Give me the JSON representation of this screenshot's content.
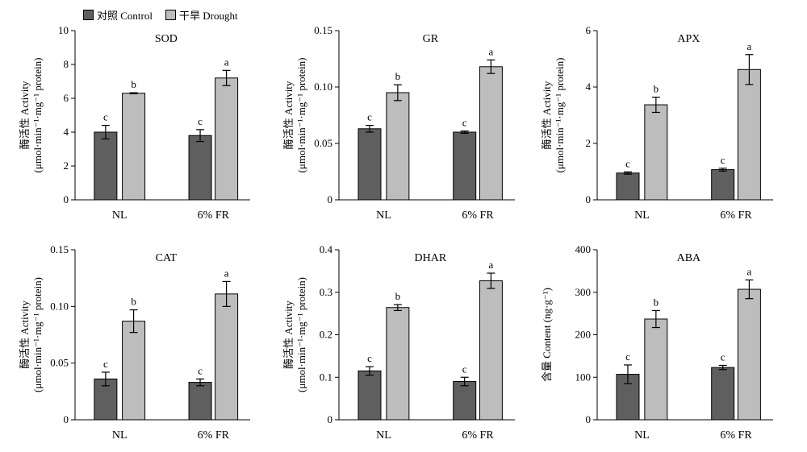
{
  "legend": {
    "control": {
      "label": "对照 Control",
      "color": "#5f5f5f"
    },
    "drought": {
      "label": "干旱 Drought",
      "color": "#bdbdbd"
    }
  },
  "chart_data": [
    {
      "type": "bar",
      "title": "SOD",
      "categories": [
        "NL",
        "6% FR"
      ],
      "ylabel": "酶活性 Activity",
      "ylabel2": "(μmol·min⁻¹·mg⁻¹ protein)",
      "ylim": [
        0,
        10
      ],
      "yticks": [
        0,
        2,
        4,
        6,
        8,
        10
      ],
      "ytick_labels": [
        "0",
        "2",
        "4",
        "6",
        "8",
        "10"
      ],
      "series": [
        {
          "name": "对照 Control",
          "values": [
            4.0,
            3.8
          ],
          "errors": [
            0.4,
            0.35
          ],
          "labels": [
            "c",
            "c"
          ]
        },
        {
          "name": "干旱 Drought",
          "values": [
            6.3,
            7.2
          ],
          "errors": [
            0.03,
            0.45
          ],
          "labels": [
            "b",
            "a"
          ]
        }
      ]
    },
    {
      "type": "bar",
      "title": "GR",
      "categories": [
        "NL",
        "6% FR"
      ],
      "ylabel": "酶活性 Activity",
      "ylabel2": "(μmol·min⁻¹·mg⁻¹ protein)",
      "ylim": [
        0,
        0.15
      ],
      "yticks": [
        0,
        0.05,
        0.1,
        0.15
      ],
      "ytick_labels": [
        "0",
        "0.05",
        "0.10",
        "0.15"
      ],
      "series": [
        {
          "name": "对照 Control",
          "values": [
            0.063,
            0.06
          ],
          "errors": [
            0.003,
            0.001
          ],
          "labels": [
            "c",
            "c"
          ]
        },
        {
          "name": "干旱 Drought",
          "values": [
            0.095,
            0.118
          ],
          "errors": [
            0.007,
            0.006
          ],
          "labels": [
            "b",
            "a"
          ]
        }
      ]
    },
    {
      "type": "bar",
      "title": "APX",
      "categories": [
        "NL",
        "6% FR"
      ],
      "ylabel": "酶活性 Activity",
      "ylabel2": "(μmol·min⁻¹·mg⁻¹ protein)",
      "ylim": [
        0,
        6
      ],
      "yticks": [
        0,
        2,
        4,
        6
      ],
      "ytick_labels": [
        "0",
        "2",
        "4",
        "6"
      ],
      "series": [
        {
          "name": "对照 Control",
          "values": [
            0.95,
            1.07
          ],
          "errors": [
            0.04,
            0.05
          ],
          "labels": [
            "c",
            "c"
          ]
        },
        {
          "name": "干旱 Drought",
          "values": [
            3.37,
            4.62
          ],
          "errors": [
            0.27,
            0.53
          ],
          "labels": [
            "b",
            "a"
          ]
        }
      ]
    },
    {
      "type": "bar",
      "title": "CAT",
      "categories": [
        "NL",
        "6% FR"
      ],
      "ylabel": "酶活性 Activity",
      "ylabel2": "(μmol·min⁻¹·mg⁻¹ protein)",
      "ylim": [
        0,
        0.15
      ],
      "yticks": [
        0,
        0.05,
        0.1,
        0.15
      ],
      "ytick_labels": [
        "0",
        "0.05",
        "0.10",
        "0.15"
      ],
      "series": [
        {
          "name": "对照 Control",
          "values": [
            0.036,
            0.033
          ],
          "errors": [
            0.006,
            0.003
          ],
          "labels": [
            "c",
            "c"
          ]
        },
        {
          "name": "干旱 Drought",
          "values": [
            0.087,
            0.111
          ],
          "errors": [
            0.01,
            0.011
          ],
          "labels": [
            "b",
            "a"
          ]
        }
      ]
    },
    {
      "type": "bar",
      "title": "DHAR",
      "categories": [
        "NL",
        "6% FR"
      ],
      "ylabel": "酶活性 Activity",
      "ylabel2": "(μmol·min⁻¹·mg⁻¹ protein)",
      "ylim": [
        0,
        0.4
      ],
      "yticks": [
        0,
        0.1,
        0.2,
        0.3,
        0.4
      ],
      "ytick_labels": [
        "0",
        "0.1",
        "0.2",
        "0.3",
        "0.4"
      ],
      "series": [
        {
          "name": "对照 Control",
          "values": [
            0.115,
            0.09
          ],
          "errors": [
            0.01,
            0.01
          ],
          "labels": [
            "c",
            "c"
          ]
        },
        {
          "name": "干旱 Drought",
          "values": [
            0.264,
            0.327
          ],
          "errors": [
            0.007,
            0.018
          ],
          "labels": [
            "b",
            "a"
          ]
        }
      ]
    },
    {
      "type": "bar",
      "title": "ABA",
      "categories": [
        "NL",
        "6% FR"
      ],
      "ylabel": "含量 Content (ng·g⁻¹)",
      "ylabel2": "",
      "ylim": [
        0,
        400
      ],
      "yticks": [
        0,
        100,
        200,
        300,
        400
      ],
      "ytick_labels": [
        "0",
        "100",
        "200",
        "300",
        "400"
      ],
      "series": [
        {
          "name": "对照 Control",
          "values": [
            107,
            123
          ],
          "errors": [
            22,
            5
          ],
          "labels": [
            "c",
            "c"
          ]
        },
        {
          "name": "干旱 Drought",
          "values": [
            237,
            307
          ],
          "errors": [
            20,
            22
          ],
          "labels": [
            "b",
            "a"
          ]
        }
      ]
    }
  ]
}
